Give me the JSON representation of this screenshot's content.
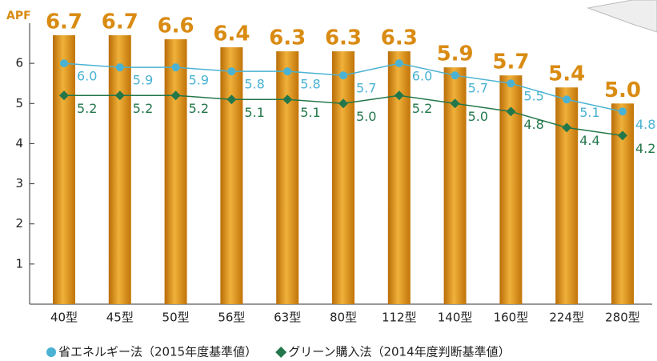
{
  "chart_data": {
    "type": "bar",
    "y_label": "APF",
    "categories": [
      "40型",
      "45型",
      "50型",
      "56型",
      "63型",
      "80型",
      "112型",
      "140型",
      "160型",
      "224型",
      "280型"
    ],
    "series": [
      {
        "type": "bar",
        "color": "#d98b12",
        "values": [
          6.7,
          6.7,
          6.6,
          6.4,
          6.3,
          6.3,
          6.3,
          5.9,
          5.7,
          5.4,
          5.0
        ],
        "value_labels": [
          "6.7",
          "6.7",
          "6.6",
          "6.4",
          "6.3",
          "6.3",
          "6.3",
          "5.9",
          "5.7",
          "5.4",
          "5.0"
        ]
      },
      {
        "type": "line",
        "marker": "circle",
        "name": "省エネルギー法（2015年度基準値）",
        "color": "#4ab2d3",
        "values": [
          6.0,
          5.9,
          5.9,
          5.8,
          5.8,
          5.7,
          6.0,
          5.7,
          5.5,
          5.1,
          4.8
        ],
        "value_labels": [
          "6.0",
          "5.9",
          "5.9",
          "5.8",
          "5.8",
          "5.7",
          "6.0",
          "5.7",
          "5.5",
          "5.1",
          "4.8"
        ]
      },
      {
        "type": "line",
        "marker": "diamond",
        "name": "グリーン購入法（2014年度判断基準値）",
        "color": "#23774a",
        "values": [
          5.2,
          5.2,
          5.2,
          5.1,
          5.1,
          5.0,
          5.2,
          5.0,
          4.8,
          4.4,
          4.2
        ],
        "value_labels": [
          "5.2",
          "5.2",
          "5.2",
          "5.1",
          "5.1",
          "5.0",
          "5.2",
          "5.0",
          "4.8",
          "4.4",
          "4.2"
        ]
      }
    ],
    "ylim": [
      0,
      7
    ],
    "yticks": [
      1,
      2,
      3,
      4,
      5,
      6
    ]
  }
}
